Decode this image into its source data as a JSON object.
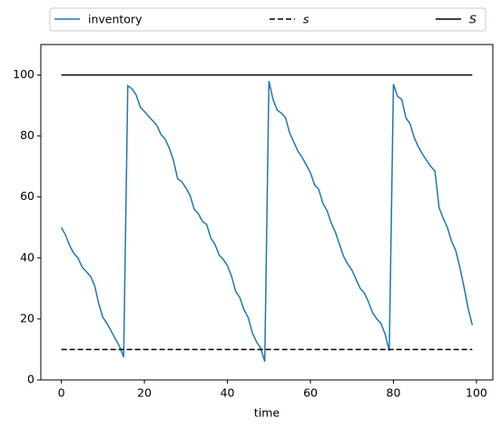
{
  "chart_data": {
    "type": "line",
    "xlabel": "time",
    "xlim": [
      -4.95,
      103.95
    ],
    "ylim": [
      0,
      110
    ],
    "xticks": [
      0,
      20,
      40,
      60,
      80,
      100
    ],
    "yticks": [
      0,
      20,
      40,
      60,
      80,
      100
    ],
    "grid": false,
    "legend": "top",
    "series": [
      {
        "name": "inventory",
        "color": "#1f77b4",
        "linestyle": "solid",
        "x": [
          0,
          1,
          2,
          3,
          4,
          5,
          6,
          7,
          8,
          9,
          10,
          11,
          12,
          13,
          14,
          15,
          16,
          17,
          18,
          19,
          20,
          21,
          22,
          23,
          24,
          25,
          26,
          27,
          28,
          29,
          30,
          31,
          32,
          33,
          34,
          35,
          36,
          37,
          38,
          39,
          40,
          41,
          42,
          43,
          44,
          45,
          46,
          47,
          48,
          49,
          50,
          51,
          52,
          53,
          54,
          55,
          56,
          57,
          58,
          59,
          60,
          61,
          62,
          63,
          64,
          65,
          66,
          67,
          68,
          69,
          70,
          71,
          72,
          73,
          74,
          75,
          76,
          77,
          78,
          79,
          80,
          81,
          82,
          83,
          84,
          85,
          86,
          87,
          88,
          89,
          90,
          91,
          92,
          93,
          94,
          95,
          96,
          97,
          98,
          99
        ],
        "values": [
          50,
          47.5,
          44,
          41.5,
          40,
          37,
          35.5,
          34,
          31,
          25,
          20.5,
          18.5,
          16,
          13.5,
          11,
          7.5,
          96.5,
          95.5,
          93.5,
          89.5,
          88,
          86.5,
          85,
          83.5,
          80.5,
          79,
          76,
          72,
          66,
          65,
          63,
          60.5,
          56,
          54.5,
          52,
          51,
          46.5,
          44.5,
          41,
          39.5,
          37.5,
          34,
          29,
          27,
          23,
          20.5,
          15.5,
          12.5,
          10.5,
          6,
          98,
          92,
          88.5,
          87.5,
          86,
          81,
          78,
          75,
          73,
          70.5,
          68,
          64,
          62.5,
          58,
          55.5,
          51.5,
          48.5,
          44.5,
          40.5,
          38,
          36,
          33,
          30,
          28.5,
          25.5,
          22,
          20,
          18.5,
          15,
          9.5,
          97,
          93,
          92,
          86,
          84,
          79.5,
          76.5,
          74,
          72,
          70,
          68.5,
          56.5,
          53,
          50,
          45.5,
          42.5,
          37,
          30.5,
          23.5,
          18
        ]
      },
      {
        "name": "s",
        "color": "#000000",
        "linestyle": "dashed",
        "x": [
          0,
          99
        ],
        "values": [
          10,
          10
        ]
      },
      {
        "name": "S",
        "color": "#000000",
        "linestyle": "solid",
        "x": [
          0,
          99
        ],
        "values": [
          100,
          100
        ]
      }
    ]
  }
}
